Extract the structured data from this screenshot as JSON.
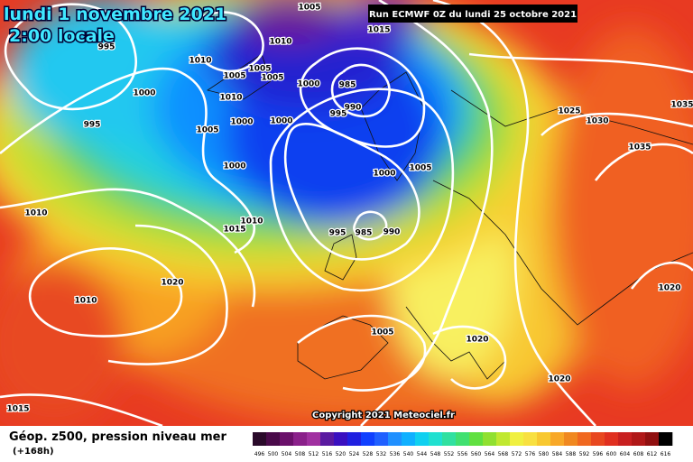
{
  "header": {
    "title": "lundi 1 novembre 2021",
    "subtitle": "2:00 locale",
    "run": "Run ECMWF 0Z du lundi 25 octobre 2021"
  },
  "isobar_labels": [
    "995",
    "1010",
    "1010",
    "1005",
    "1005",
    "1005",
    "1005",
    "1015",
    "1000",
    "1010",
    "1000",
    "1000",
    "1000",
    "985",
    "995",
    "990",
    "995",
    "1005",
    "1000",
    "1000",
    "1005",
    "1025",
    "1030",
    "1035",
    "1035",
    "1010",
    "1010",
    "1015",
    "995",
    "985",
    "990",
    "1020",
    "1010",
    "1020",
    "1005",
    "1020",
    "1020",
    "1015"
  ],
  "copyright": "Copyright 2021 Meteociel.fr",
  "legend": {
    "title": "Géop. z500, pression niveau mer",
    "lead": "(+168h)",
    "labels": [
      "496",
      "500",
      "504",
      "508",
      "512",
      "516",
      "520",
      "524",
      "528",
      "532",
      "536",
      "540",
      "544",
      "548",
      "552",
      "556",
      "560",
      "564",
      "568",
      "572",
      "576",
      "580",
      "584",
      "588",
      "592",
      "596",
      "600",
      "604",
      "608",
      "612",
      "616"
    ],
    "colors": [
      "#2a0a2a",
      "#4a0a4a",
      "#6a106a",
      "#8a208a",
      "#a030a0",
      "#5a1aa0",
      "#3a10c0",
      "#2020e0",
      "#1040ff",
      "#2060ff",
      "#2090ff",
      "#10b0ff",
      "#10d0f0",
      "#20e0d0",
      "#30e0a0",
      "#40e070",
      "#60e040",
      "#90e030",
      "#c0e830",
      "#f0f040",
      "#f8e040",
      "#f8c830",
      "#f8a828",
      "#f08820",
      "#f06820",
      "#e84820",
      "#e03020",
      "#c82020",
      "#b01818",
      "#901010",
      "#000000"
    ]
  }
}
